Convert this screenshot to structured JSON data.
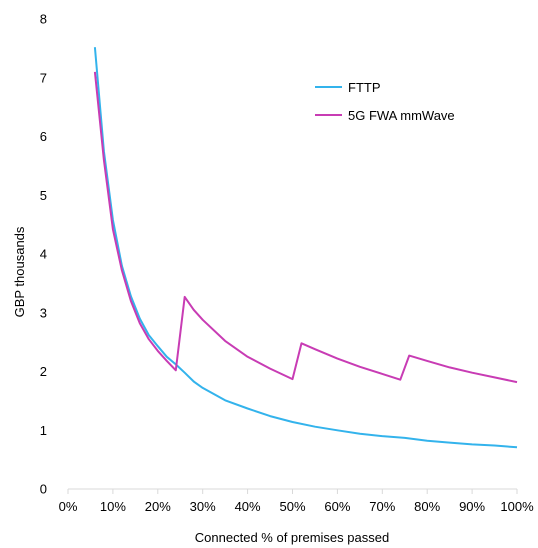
{
  "chart_data": {
    "type": "line",
    "xlabel": "Connected % of premises passed",
    "ylabel": "GBP thousands",
    "xlim": [
      0,
      100
    ],
    "ylim": [
      0,
      8
    ],
    "x_ticks": [
      "0%",
      "10%",
      "20%",
      "30%",
      "40%",
      "50%",
      "60%",
      "70%",
      "80%",
      "90%",
      "100%"
    ],
    "y_ticks": [
      "0",
      "1",
      "2",
      "3",
      "4",
      "5",
      "6",
      "7",
      "8"
    ],
    "legend_position": "top-right",
    "series": [
      {
        "name": "FTTP",
        "color": "#33b3ec",
        "points": [
          [
            6,
            7.52
          ],
          [
            8,
            5.75
          ],
          [
            10,
            4.58
          ],
          [
            12,
            3.8
          ],
          [
            14,
            3.28
          ],
          [
            16,
            2.9
          ],
          [
            18,
            2.62
          ],
          [
            20,
            2.43
          ],
          [
            22,
            2.25
          ],
          [
            24,
            2.12
          ],
          [
            26,
            1.98
          ],
          [
            28,
            1.83
          ],
          [
            30,
            1.72
          ],
          [
            35,
            1.51
          ],
          [
            40,
            1.37
          ],
          [
            45,
            1.24
          ],
          [
            50,
            1.14
          ],
          [
            55,
            1.06
          ],
          [
            60,
            1.0
          ],
          [
            65,
            0.94
          ],
          [
            70,
            0.9
          ],
          [
            75,
            0.87
          ],
          [
            80,
            0.82
          ],
          [
            85,
            0.79
          ],
          [
            90,
            0.76
          ],
          [
            95,
            0.74
          ],
          [
            100,
            0.71
          ]
        ]
      },
      {
        "name": "5G FWA mmWave",
        "color": "#c83cb4",
        "points": [
          [
            6,
            7.1
          ],
          [
            8,
            5.6
          ],
          [
            10,
            4.42
          ],
          [
            12,
            3.72
          ],
          [
            14,
            3.2
          ],
          [
            16,
            2.82
          ],
          [
            18,
            2.55
          ],
          [
            20,
            2.35
          ],
          [
            22,
            2.18
          ],
          [
            24,
            2.02
          ],
          [
            26,
            3.27
          ],
          [
            28,
            3.05
          ],
          [
            30,
            2.88
          ],
          [
            35,
            2.52
          ],
          [
            40,
            2.25
          ],
          [
            45,
            2.05
          ],
          [
            50,
            1.87
          ],
          [
            52,
            2.48
          ],
          [
            55,
            2.38
          ],
          [
            60,
            2.22
          ],
          [
            65,
            2.08
          ],
          [
            70,
            1.96
          ],
          [
            74,
            1.86
          ],
          [
            76,
            2.27
          ],
          [
            80,
            2.18
          ],
          [
            85,
            2.07
          ],
          [
            90,
            1.98
          ],
          [
            95,
            1.9
          ],
          [
            100,
            1.82
          ]
        ]
      }
    ]
  }
}
